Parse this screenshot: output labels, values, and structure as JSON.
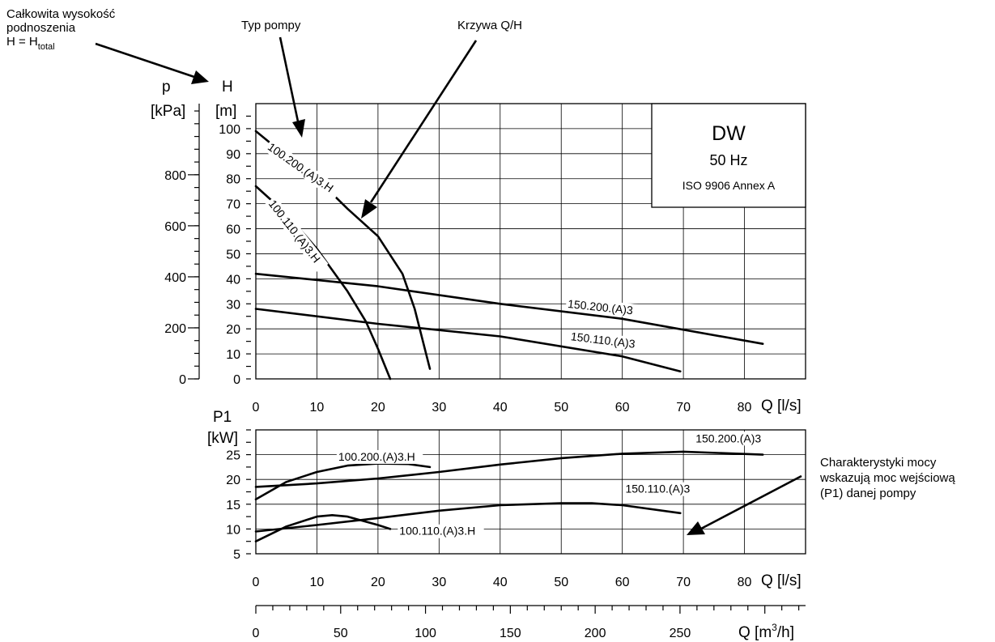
{
  "annotations": {
    "head_line1": "Całkowita wysokość",
    "head_line2": "podnoszenia",
    "head_line3_pre": "H = H",
    "head_line3_sub": "total",
    "pump_type": "Typ pompy",
    "qh_curve": "Krzywa Q/H",
    "power_line1": "Charakterystyki mocy",
    "power_line2": "wskazują moc wejściową",
    "power_line3": "(P1) danej pompy"
  },
  "infobox": {
    "title": "DW",
    "freq": "50 Hz",
    "standard": "ISO 9906 Annex A"
  },
  "chart_data": [
    {
      "type": "line",
      "panel": "Q/H",
      "title": "",
      "xlabel": "Q [l/s]",
      "ylabel": "H [m]",
      "secondary_ylabel": "p [kPa]",
      "xlim": [
        0,
        90
      ],
      "ylim": [
        0,
        110
      ],
      "x_ticks": [
        0,
        10,
        20,
        30,
        40,
        50,
        60,
        70,
        80
      ],
      "y_ticks": [
        0,
        10,
        20,
        30,
        40,
        50,
        60,
        70,
        80,
        90,
        100
      ],
      "p_ticks": [
        0,
        200,
        400,
        600,
        800
      ],
      "grid": true,
      "series": [
        {
          "name": "100.200.(A)3.H",
          "x": [
            0,
            5,
            10,
            15,
            20,
            24,
            26,
            28.5
          ],
          "y": [
            99,
            89,
            80,
            68,
            57,
            42,
            28,
            4
          ]
        },
        {
          "name": "100.110.(A)3.H",
          "x": [
            0,
            5,
            10,
            15,
            18,
            20,
            22
          ],
          "y": [
            77,
            66,
            52,
            35,
            23,
            12,
            0
          ]
        },
        {
          "name": "150.200.(A)3",
          "x": [
            0,
            20,
            40,
            60,
            83
          ],
          "y": [
            42,
            37,
            30,
            24,
            14
          ]
        },
        {
          "name": "150.110.(A)3",
          "x": [
            0,
            20,
            40,
            60,
            69.5
          ],
          "y": [
            28,
            22,
            17,
            9,
            3
          ]
        }
      ]
    },
    {
      "type": "line",
      "panel": "P1",
      "title": "",
      "xlabel": "Q [l/s]",
      "ylabel": "P1 [kW]",
      "xlim": [
        0,
        90
      ],
      "ylim": [
        5,
        30
      ],
      "x_ticks": [
        0,
        10,
        20,
        30,
        40,
        50,
        60,
        70,
        80
      ],
      "y_ticks": [
        5,
        10,
        15,
        20,
        25
      ],
      "grid": true,
      "series": [
        {
          "name": "100.200.(A)3.H",
          "x": [
            0,
            5,
            10,
            15,
            20,
            25,
            28.5
          ],
          "y": [
            16,
            19.5,
            21.5,
            22.8,
            23.2,
            23.1,
            22.5
          ]
        },
        {
          "name": "100.110.(A)3.H",
          "x": [
            0,
            5,
            10,
            12.5,
            15,
            20,
            22
          ],
          "y": [
            7.5,
            10.5,
            12.5,
            12.8,
            12.5,
            10.8,
            10
          ]
        },
        {
          "name": "150.200.(A)3",
          "x": [
            0,
            10,
            20,
            30,
            40,
            50,
            60,
            70,
            83
          ],
          "y": [
            18.5,
            19.2,
            20.2,
            21.5,
            23,
            24.3,
            25.2,
            25.6,
            25
          ]
        },
        {
          "name": "150.110.(A)3",
          "x": [
            0,
            10,
            20,
            30,
            40,
            50,
            55,
            60,
            69.5
          ],
          "y": [
            9.5,
            10.8,
            12.2,
            13.7,
            14.8,
            15.2,
            15.2,
            14.8,
            13.2
          ]
        }
      ]
    }
  ],
  "flow_m3h_axis": {
    "label_pre": "Q [m",
    "label_sup": "3",
    "label_post": "/h]",
    "ticks": [
      0,
      50,
      100,
      150,
      200,
      250
    ]
  }
}
